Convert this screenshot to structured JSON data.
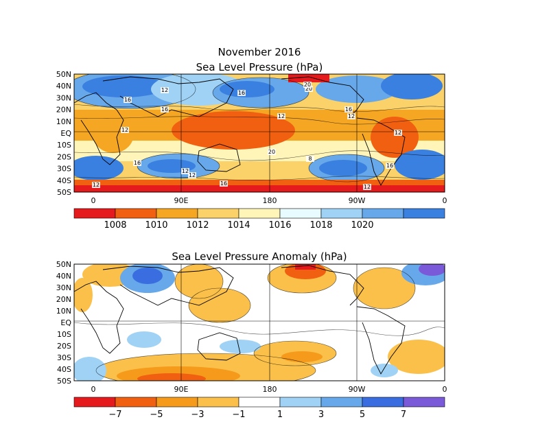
{
  "figure": {
    "title_line1": "November 2016",
    "panels": [
      {
        "id": "slp",
        "title": "Sea Level Pressure (hPa)",
        "lat_labels": [
          "50N",
          "40N",
          "30N",
          "20N",
          "10N",
          "EQ",
          "10S",
          "20S",
          "30S",
          "40S",
          "50S"
        ],
        "lon_labels": [
          "0",
          "90E",
          "180",
          "90W",
          "0"
        ],
        "contour_labels": [
          "20",
          "16",
          "12",
          "16",
          "16",
          "20",
          "16",
          "12",
          "12",
          "12",
          "16",
          "20",
          "16",
          "12",
          "16",
          "12",
          "12",
          "8",
          "12",
          "12"
        ],
        "colorbar": {
          "colors": [
            "#e41a1c",
            "#f06010",
            "#f5a623",
            "#fbd26a",
            "#fff5b8",
            "#e8fbff",
            "#9fd2f5",
            "#66a8ea",
            "#3a80e0"
          ],
          "labels": [
            "1008",
            "1010",
            "1012",
            "1014",
            "1016",
            "1018",
            "1020"
          ]
        }
      },
      {
        "id": "anom",
        "title": "Sea Level Pressure Anomaly (hPa)",
        "lat_labels": [
          "50N",
          "40N",
          "30N",
          "20N",
          "10N",
          "EQ",
          "10S",
          "20S",
          "30S",
          "40S",
          "50S"
        ],
        "lon_labels": [
          "0",
          "90E",
          "180",
          "90W",
          "0"
        ],
        "colorbar": {
          "colors": [
            "#e41a1c",
            "#f06010",
            "#f59a1a",
            "#fbc04a",
            "#ffffff",
            "#9fd2f5",
            "#66a8ea",
            "#3a6ee0",
            "#7a5ad8"
          ],
          "labels": [
            "−7",
            "−5",
            "−3",
            "−1",
            "1",
            "3",
            "5",
            "7"
          ]
        }
      }
    ]
  }
}
